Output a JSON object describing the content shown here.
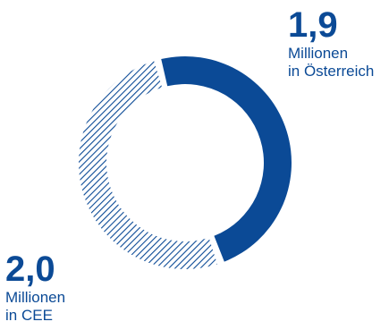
{
  "chart_data": {
    "type": "pie",
    "style": "donut",
    "unit": "Millionen",
    "series": [
      {
        "value_label": "1,9",
        "value": 1.9,
        "line1": "Millionen",
        "line2": "in Österreich",
        "fill": "solid",
        "color": "#0b4a96"
      },
      {
        "value_label": "2,0",
        "value": 2.0,
        "line1": "Millionen",
        "line2": "in CEE",
        "fill": "hatched",
        "color": "#0b4a96"
      }
    ]
  }
}
